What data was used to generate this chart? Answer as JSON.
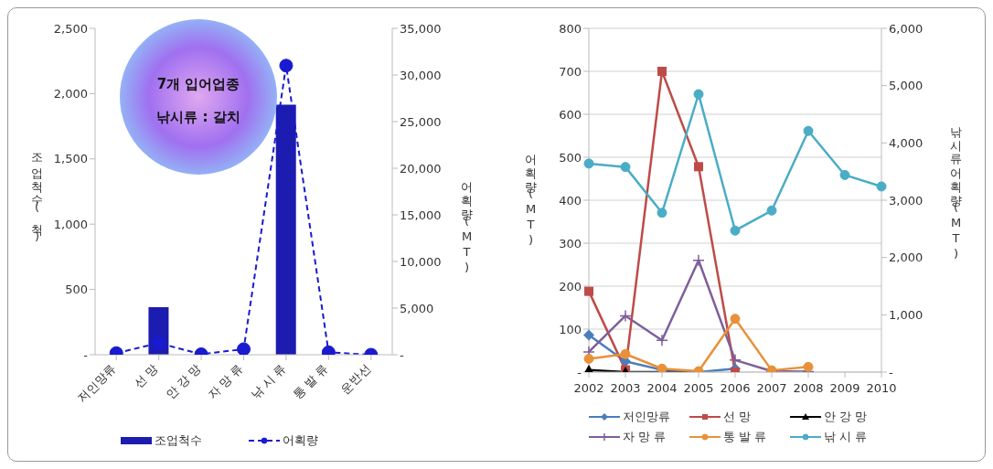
{
  "chart_data": [
    {
      "type": "bar",
      "categories": [
        "저인망류",
        "선 망",
        "안 강 망",
        "자 망 류",
        "낚 시 류",
        "통 발 류",
        "운반선"
      ],
      "series": [
        {
          "name": "조업척수",
          "type": "bar",
          "color": "#1c1cb0",
          "values": [
            0,
            365,
            0,
            0,
            1915,
            0,
            0
          ]
        },
        {
          "name": "어획량",
          "type": "line",
          "axis": "y2",
          "color": "#1a1ad0",
          "marker": "circle",
          "line_style": "dashed",
          "values": [
            170,
            1250,
            50,
            600,
            31000,
            260,
            0
          ]
        }
      ],
      "ylabel": "조업척수(척)",
      "y2label": "어획량(MT)",
      "ylim": [
        0,
        2500
      ],
      "yticks": [
        {
          "value": 0,
          "label": "-"
        },
        500,
        {
          "value": 1000,
          "label": "1,000"
        },
        {
          "value": 1500,
          "label": "1,500"
        },
        {
          "value": 2000,
          "label": "2,000"
        },
        {
          "value": 2500,
          "label": "2,500"
        }
      ],
      "y2lim": [
        0,
        35000
      ],
      "y2ticks": [
        {
          "value": 0,
          "label": "-"
        },
        {
          "value": 5000,
          "label": "5,000"
        },
        {
          "value": 10000,
          "label": "10,000"
        },
        {
          "value": 15000,
          "label": "15,000"
        },
        {
          "value": 20000,
          "label": "20,000"
        },
        {
          "value": 25000,
          "label": "25,000"
        },
        {
          "value": 30000,
          "label": "30,000"
        },
        {
          "value": 35000,
          "label": "35,000"
        }
      ],
      "grid": false,
      "legend": "bottom",
      "annotations": [
        "7개 입어업종",
        "낚시류 : 갈치"
      ]
    },
    {
      "type": "line",
      "categories": [
        "2002",
        "2003",
        "2004",
        "2005",
        "2006",
        "2007",
        "2008",
        "2009",
        "2010"
      ],
      "series": [
        {
          "name": "저인망류",
          "color": "#4a7ebb",
          "marker": "diamond",
          "values": [
            86,
            25,
            5,
            0,
            8,
            null,
            null,
            null,
            null
          ]
        },
        {
          "name": "선 망",
          "color": "#be4b48",
          "marker": "square",
          "values": [
            188,
            5,
            700,
            478,
            0,
            null,
            null,
            null,
            null
          ]
        },
        {
          "name": "안 강 망",
          "color": "#000000",
          "marker": "triangle",
          "values": [
            5,
            0,
            0,
            0,
            null,
            null,
            null,
            null,
            null
          ]
        },
        {
          "name": "자 망 류",
          "color": "#7e5f9a",
          "marker": "cross",
          "values": [
            47,
            131,
            74,
            260,
            28,
            2,
            1,
            null,
            null
          ]
        },
        {
          "name": "통 발 류",
          "color": "#e8913a",
          "marker": "circle",
          "values": [
            31,
            42,
            8,
            2,
            124,
            4,
            12,
            null,
            null
          ]
        },
        {
          "name": "낚 시 류",
          "color": "#4bacc6",
          "marker": "circle",
          "axis": "y2",
          "values": [
            3640,
            3580,
            2780,
            4850,
            2470,
            2820,
            4210,
            3440,
            3240
          ]
        }
      ],
      "ylabel": "어획량(MT)",
      "y2label": "낚시류어획량(MT)",
      "ylim": [
        0,
        800
      ],
      "yticks": [
        {
          "value": 0,
          "label": "-"
        },
        100,
        200,
        300,
        400,
        500,
        600,
        700,
        800
      ],
      "y2lim": [
        0,
        6000
      ],
      "y2ticks": [
        {
          "value": 0,
          "label": "-"
        },
        {
          "value": 1000,
          "label": "1,000"
        },
        {
          "value": 2000,
          "label": "2,000"
        },
        {
          "value": 3000,
          "label": "3,000"
        },
        {
          "value": 4000,
          "label": "4,000"
        },
        {
          "value": 5000,
          "label": "5,000"
        },
        {
          "value": 6000,
          "label": "6,000"
        }
      ],
      "grid": "y",
      "legend": "bottom",
      "line_style": "solid"
    }
  ]
}
